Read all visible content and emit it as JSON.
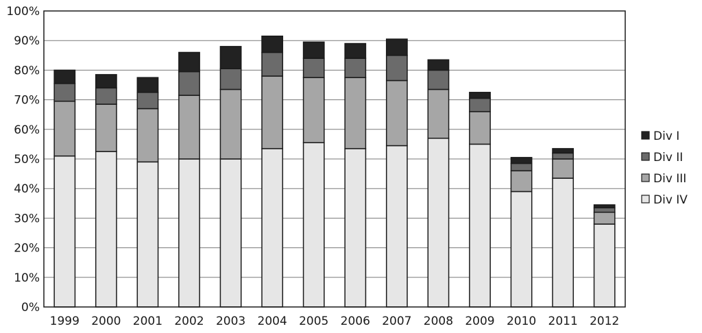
{
  "chart_data": {
    "type": "bar",
    "stacked": true,
    "title": "",
    "xlabel": "",
    "ylabel": "",
    "ylim": [
      0,
      100
    ],
    "y_ticks": [
      "0%",
      "10%",
      "20%",
      "30%",
      "40%",
      "50%",
      "60%",
      "70%",
      "80%",
      "90%",
      "100%"
    ],
    "grid": true,
    "legend_position": "right",
    "categories": [
      "1999",
      "2000",
      "2001",
      "2002",
      "2003",
      "2004",
      "2005",
      "2006",
      "2007",
      "2008",
      "2009",
      "2010",
      "2011",
      "2012"
    ],
    "series": [
      {
        "name": "Div IV",
        "color": "#e6e6e6",
        "values": [
          51,
          52.5,
          49,
          50,
          50,
          53.5,
          55.5,
          53.5,
          54.5,
          57,
          55,
          39,
          43.5,
          28
        ]
      },
      {
        "name": "Div III",
        "color": "#a6a6a6",
        "values": [
          18.5,
          16,
          18,
          21.5,
          23.5,
          24.5,
          22,
          24,
          22,
          16.5,
          11,
          7,
          6.5,
          4
        ]
      },
      {
        "name": "Div II",
        "color": "#6b6b6b",
        "values": [
          6,
          5.5,
          5.5,
          8,
          7,
          8,
          6.5,
          6.5,
          8.5,
          6.5,
          4.5,
          2.5,
          2,
          1.5
        ]
      },
      {
        "name": "Div I",
        "color": "#222222",
        "values": [
          4.5,
          4.5,
          5,
          6.5,
          7.5,
          5.5,
          5.5,
          5,
          5.5,
          3.5,
          2,
          2,
          1.5,
          1
        ]
      }
    ]
  }
}
